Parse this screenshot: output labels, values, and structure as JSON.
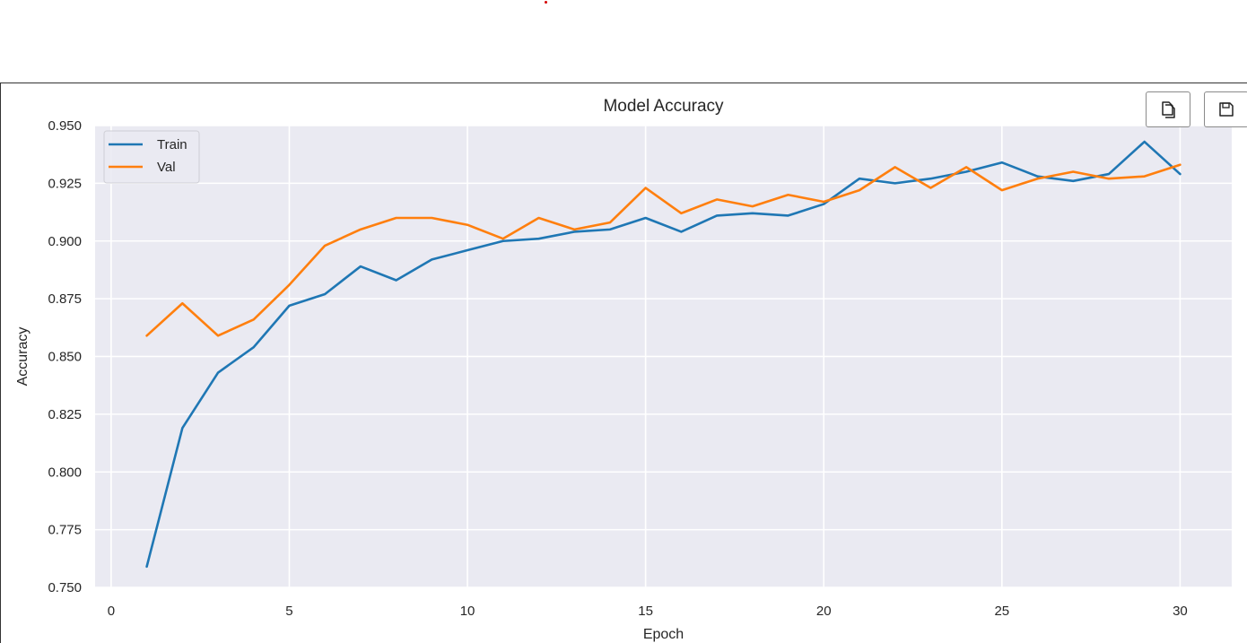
{
  "toolbar": {
    "copy_icon": "copy-icon",
    "save_icon": "floppy-disk-icon"
  },
  "chart_data": {
    "type": "line",
    "title": "Model Accuracy",
    "xlabel": "Epoch",
    "ylabel": "Accuracy",
    "xlim": [
      -0.45,
      31.45
    ],
    "ylim": [
      0.75,
      0.95
    ],
    "xticks": [
      0,
      5,
      10,
      15,
      20,
      25,
      30
    ],
    "yticks": [
      0.75,
      0.775,
      0.8,
      0.825,
      0.85,
      0.875,
      0.9,
      0.925,
      0.95
    ],
    "xtick_labels": [
      "0",
      "5",
      "10",
      "15",
      "20",
      "25",
      "30"
    ],
    "ytick_labels": [
      "0.750",
      "0.775",
      "0.800",
      "0.825",
      "0.850",
      "0.875",
      "0.900",
      "0.925",
      "0.950"
    ],
    "grid": true,
    "legend_position": "top-left",
    "x": [
      1,
      2,
      3,
      4,
      5,
      6,
      7,
      8,
      9,
      10,
      11,
      12,
      13,
      14,
      15,
      16,
      17,
      18,
      19,
      20,
      21,
      22,
      23,
      24,
      25,
      26,
      27,
      28,
      29,
      30
    ],
    "series": [
      {
        "name": "Train",
        "color": "#1f77b4",
        "values": [
          0.759,
          0.819,
          0.843,
          0.854,
          0.872,
          0.877,
          0.889,
          0.883,
          0.892,
          0.896,
          0.9,
          0.901,
          0.904,
          0.905,
          0.91,
          0.904,
          0.911,
          0.912,
          0.911,
          0.916,
          0.927,
          0.925,
          0.927,
          0.93,
          0.934,
          0.928,
          0.926,
          0.929,
          0.943,
          0.929
        ]
      },
      {
        "name": "Val",
        "color": "#ff7f0e",
        "values": [
          0.859,
          0.873,
          0.859,
          0.866,
          0.881,
          0.898,
          0.905,
          0.91,
          0.91,
          0.907,
          0.901,
          0.91,
          0.905,
          0.908,
          0.923,
          0.912,
          0.918,
          0.915,
          0.92,
          0.917,
          0.922,
          0.932,
          0.923,
          0.932,
          0.922,
          0.927,
          0.93,
          0.927,
          0.928,
          0.933
        ]
      }
    ],
    "colors": {
      "plot_background": "#eaeaf2",
      "grid": "#ffffff",
      "text": "#262626"
    }
  }
}
